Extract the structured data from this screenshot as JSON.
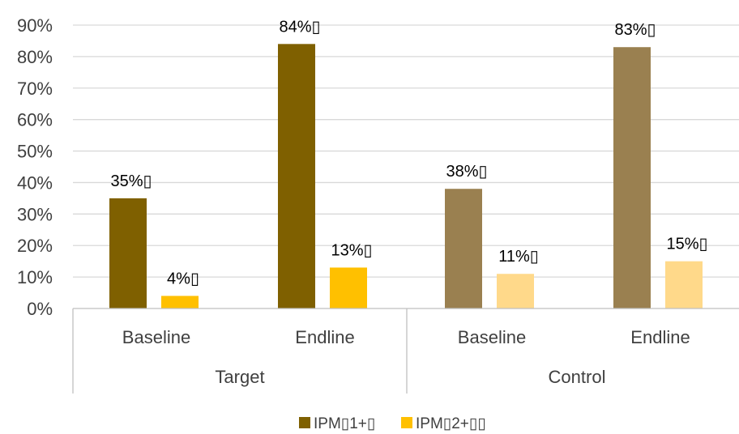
{
  "chart_data": {
    "type": "bar",
    "groups": [
      {
        "label": "Target",
        "categories": [
          "Baseline",
          "Endline"
        ]
      },
      {
        "label": "Control",
        "categories": [
          "Baseline",
          "Endline"
        ]
      }
    ],
    "series": [
      {
        "name": "IPM▯1+▯",
        "values": [
          35,
          84,
          38,
          83
        ],
        "labels": [
          "35%▯",
          "84%▯",
          "38%▯",
          "83%▯"
        ],
        "colors": [
          "#7f6000",
          "#7f6000",
          "#9a8050",
          "#9a8050"
        ]
      },
      {
        "name": "IPM▯2+▯▯",
        "values": [
          4,
          13,
          11,
          15
        ],
        "labels": [
          "4%▯",
          "13%▯",
          "11%▯",
          "15%▯"
        ],
        "colors": [
          "#ffc000",
          "#ffc000",
          "#ffd98a",
          "#ffd98a"
        ]
      }
    ],
    "y_ticks": [
      "0%",
      "10%",
      "20%",
      "30%",
      "40%",
      "50%",
      "60%",
      "70%",
      "80%",
      "90%"
    ],
    "ylim": [
      0,
      90
    ],
    "grid": true,
    "legend_position": "bottom",
    "legend_colors": [
      "#7f6000",
      "#ffc000"
    ],
    "gridline_color": "#d9d9d9",
    "axis_color": "#bfbfbf"
  }
}
